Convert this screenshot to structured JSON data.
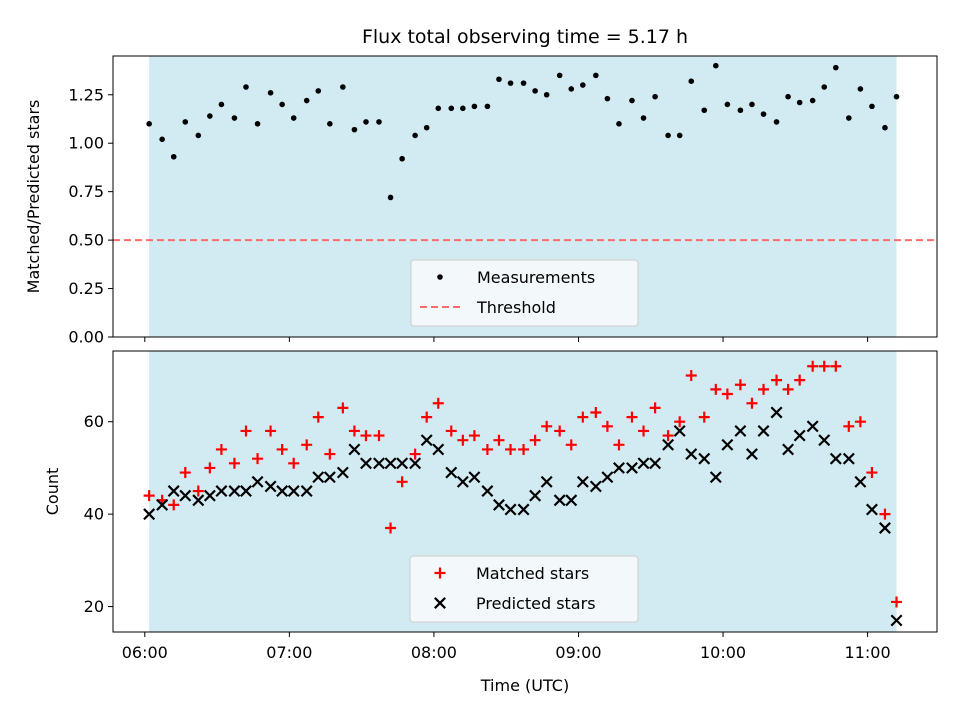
{
  "chart_data": [
    {
      "type": "scatter",
      "title": "Flux total observing time = 5.17 h",
      "ylabel": "Matched/Predicted stars",
      "xlabel": "",
      "x_unit": "hours (UTC)",
      "xlim": [
        5.78,
        11.48
      ],
      "ylim": [
        0.0,
        1.45
      ],
      "yticks": [
        "0.00",
        "0.25",
        "0.50",
        "0.75",
        "1.00",
        "1.25"
      ],
      "ytick_values": [
        0.0,
        0.25,
        0.5,
        0.75,
        1.0,
        1.25
      ],
      "grid": false,
      "legend_position": "lower-center",
      "observing_window": {
        "start": 6.03,
        "end": 11.2,
        "color": "#add8e6"
      },
      "threshold": {
        "name": "Threshold",
        "value": 0.5,
        "color": "#ff6b6b",
        "style": "dashed"
      },
      "series": [
        {
          "name": "Measurements",
          "color": "#000000",
          "marker": "dot",
          "x": [
            6.03,
            6.12,
            6.2,
            6.28,
            6.37,
            6.45,
            6.53,
            6.62,
            6.7,
            6.78,
            6.87,
            6.95,
            7.03,
            7.12,
            7.2,
            7.28,
            7.37,
            7.45,
            7.53,
            7.62,
            7.7,
            7.78,
            7.87,
            7.95,
            8.03,
            8.12,
            8.2,
            8.28,
            8.37,
            8.45,
            8.53,
            8.62,
            8.7,
            8.78,
            8.87,
            8.95,
            9.03,
            9.12,
            9.2,
            9.28,
            9.37,
            9.45,
            9.53,
            9.62,
            9.7,
            9.78,
            9.87,
            9.95,
            10.03,
            10.12,
            10.2,
            10.28,
            10.37,
            10.45,
            10.53,
            10.62,
            10.7,
            10.78,
            10.87,
            10.95,
            11.03,
            11.12,
            11.2
          ],
          "y": [
            1.1,
            1.02,
            0.93,
            1.11,
            1.04,
            1.14,
            1.2,
            1.13,
            1.29,
            1.1,
            1.26,
            1.2,
            1.13,
            1.22,
            1.27,
            1.1,
            1.29,
            1.07,
            1.11,
            1.11,
            0.72,
            0.92,
            1.04,
            1.08,
            1.18,
            1.18,
            1.18,
            1.19,
            1.19,
            1.33,
            1.31,
            1.31,
            1.27,
            1.25,
            1.35,
            1.28,
            1.3,
            1.35,
            1.23,
            1.1,
            1.22,
            1.13,
            1.24,
            1.04,
            1.04,
            1.32,
            1.17,
            1.4,
            1.2,
            1.17,
            1.2,
            1.15,
            1.11,
            1.24,
            1.21,
            1.22,
            1.29,
            1.39,
            1.13,
            1.28,
            1.19,
            1.08,
            1.24
          ]
        }
      ]
    },
    {
      "type": "scatter",
      "title": "",
      "ylabel": "Count",
      "xlabel": "Time (UTC)",
      "x_unit": "hours (UTC)",
      "xlim": [
        5.78,
        11.48
      ],
      "ylim": [
        14.5,
        75.3
      ],
      "xticks": [
        "06:00",
        "07:00",
        "08:00",
        "09:00",
        "10:00",
        "11:00"
      ],
      "xtick_values": [
        6,
        7,
        8,
        9,
        10,
        11
      ],
      "yticks": [
        "20",
        "40",
        "60"
      ],
      "ytick_values": [
        20,
        40,
        60
      ],
      "grid": false,
      "legend_position": "lower-center",
      "observing_window": {
        "start": 6.03,
        "end": 11.2,
        "color": "#add8e6"
      },
      "series": [
        {
          "name": "Matched stars",
          "color": "#ff0000",
          "marker": "plus",
          "x": [
            6.03,
            6.12,
            6.2,
            6.28,
            6.37,
            6.45,
            6.53,
            6.62,
            6.7,
            6.78,
            6.87,
            6.95,
            7.03,
            7.12,
            7.2,
            7.28,
            7.37,
            7.45,
            7.53,
            7.62,
            7.7,
            7.78,
            7.87,
            7.95,
            8.03,
            8.12,
            8.2,
            8.28,
            8.37,
            8.45,
            8.53,
            8.62,
            8.7,
            8.78,
            8.87,
            8.95,
            9.03,
            9.12,
            9.2,
            9.28,
            9.37,
            9.45,
            9.53,
            9.62,
            9.7,
            9.78,
            9.87,
            9.95,
            10.03,
            10.12,
            10.2,
            10.28,
            10.37,
            10.45,
            10.53,
            10.62,
            10.7,
            10.78,
            10.87,
            10.95,
            11.03,
            11.12,
            11.2
          ],
          "y": [
            44,
            43,
            42,
            49,
            45,
            50,
            54,
            51,
            58,
            52,
            58,
            54,
            51,
            55,
            61,
            53,
            63,
            58,
            57,
            57,
            37,
            47,
            53,
            61,
            64,
            58,
            56,
            57,
            54,
            56,
            54,
            54,
            56,
            59,
            58,
            55,
            61,
            62,
            59,
            55,
            61,
            58,
            63,
            57,
            60,
            70,
            61,
            67,
            66,
            68,
            64,
            67,
            69,
            67,
            69,
            72,
            72,
            72,
            59,
            60,
            49,
            40,
            21
          ]
        },
        {
          "name": "Predicted stars",
          "color": "#000000",
          "marker": "x",
          "x": [
            6.03,
            6.12,
            6.2,
            6.28,
            6.37,
            6.45,
            6.53,
            6.62,
            6.7,
            6.78,
            6.87,
            6.95,
            7.03,
            7.12,
            7.2,
            7.28,
            7.37,
            7.45,
            7.53,
            7.62,
            7.7,
            7.78,
            7.87,
            7.95,
            8.03,
            8.12,
            8.2,
            8.28,
            8.37,
            8.45,
            8.53,
            8.62,
            8.7,
            8.78,
            8.87,
            8.95,
            9.03,
            9.12,
            9.2,
            9.28,
            9.37,
            9.45,
            9.53,
            9.62,
            9.7,
            9.78,
            9.87,
            9.95,
            10.03,
            10.12,
            10.2,
            10.28,
            10.37,
            10.45,
            10.53,
            10.62,
            10.7,
            10.78,
            10.87,
            10.95,
            11.03,
            11.12,
            11.2
          ],
          "y": [
            40,
            42,
            45,
            44,
            43,
            44,
            45,
            45,
            45,
            47,
            46,
            45,
            45,
            45,
            48,
            48,
            49,
            54,
            51,
            51,
            51,
            51,
            51,
            56,
            54,
            49,
            47,
            48,
            45,
            42,
            41,
            41,
            44,
            47,
            43,
            43,
            47,
            46,
            48,
            50,
            50,
            51,
            51,
            55,
            58,
            53,
            52,
            48,
            55,
            58,
            53,
            58,
            62,
            54,
            57,
            59,
            56,
            52,
            52,
            47,
            41,
            37,
            17
          ]
        }
      ]
    }
  ]
}
